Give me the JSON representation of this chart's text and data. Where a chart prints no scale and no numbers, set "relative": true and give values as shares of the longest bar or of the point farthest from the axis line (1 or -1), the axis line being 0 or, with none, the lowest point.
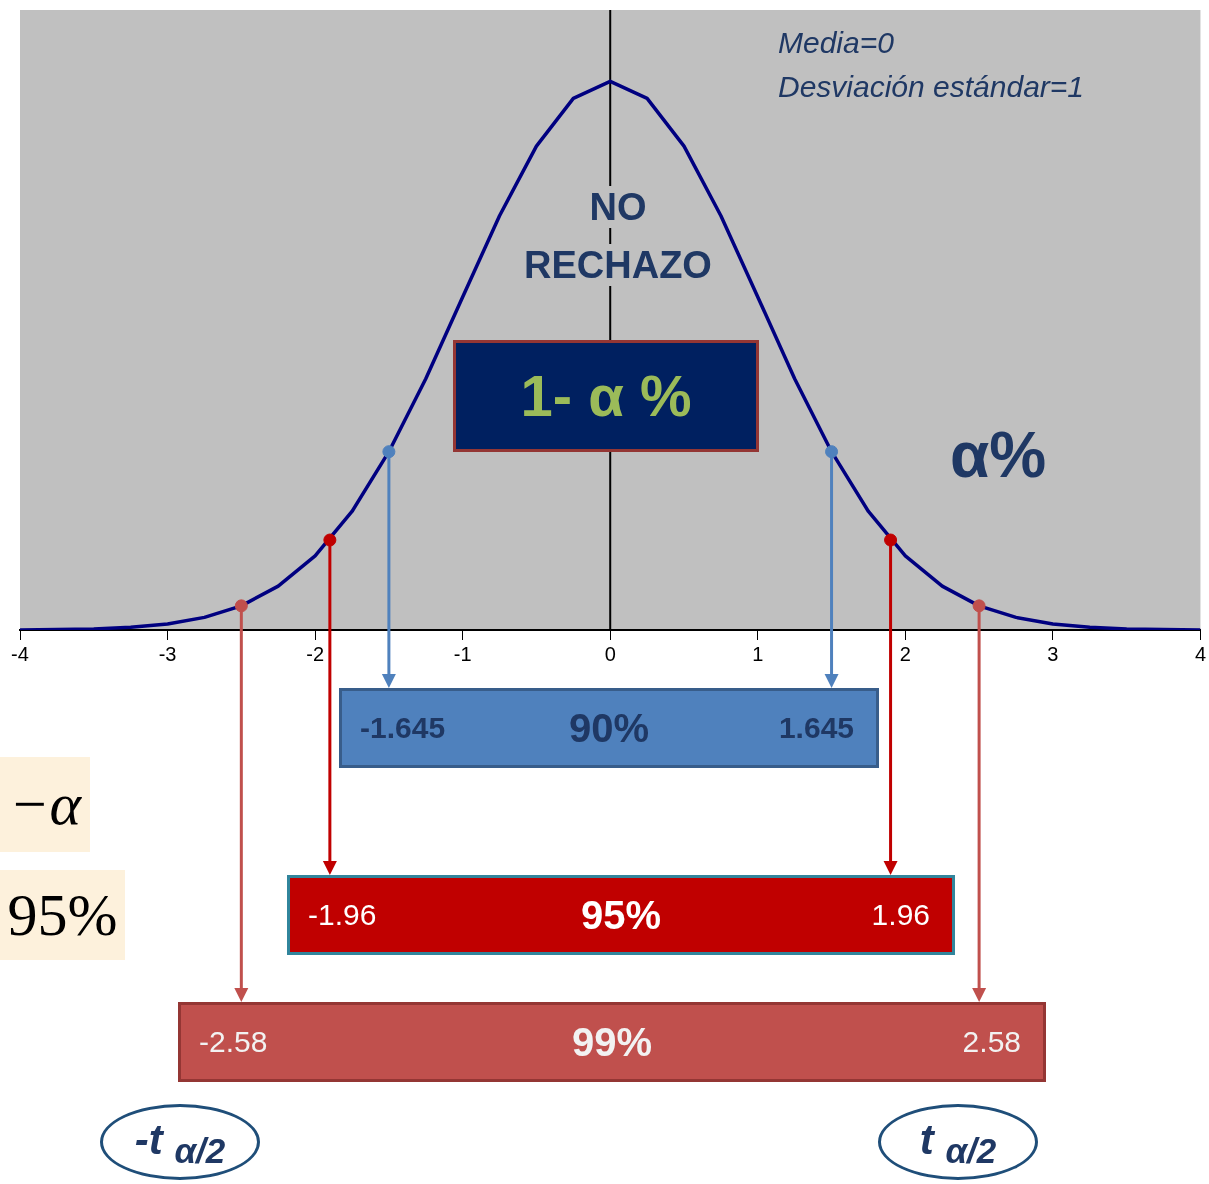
{
  "chart_data": {
    "type": "line",
    "relative": true,
    "xlim": [
      -4,
      4
    ],
    "xticks": [
      -4,
      -3,
      -2,
      -1,
      0,
      1,
      2,
      3,
      4
    ],
    "grid": false,
    "legend": false,
    "series": [
      {
        "color": "#000080",
        "marker": "none",
        "x": [
          -4,
          -3.75,
          -3.5,
          -3.25,
          -3,
          -2.75,
          -2.5,
          -2.25,
          -2,
          -1.75,
          -1.5,
          -1.25,
          -1,
          -0.75,
          -0.5,
          -0.25,
          0,
          0.25,
          0.5,
          0.75,
          1,
          1.25,
          1.5,
          1.75,
          2,
          2.25,
          2.5,
          2.75,
          3,
          3.25,
          3.5,
          3.75,
          4
        ],
        "values": [
          0.0,
          0.001,
          0.002,
          0.005,
          0.011,
          0.023,
          0.044,
          0.08,
          0.135,
          0.216,
          0.325,
          0.458,
          0.607,
          0.755,
          0.882,
          0.969,
          1,
          0.969,
          0.882,
          0.755,
          0.607,
          0.458,
          0.325,
          0.216,
          0.135,
          0.08,
          0.044,
          0.023,
          0.011,
          0.005,
          0.002,
          0.001,
          0.0
        ]
      },
      {
        "type": "scatter",
        "marker": "circle",
        "x": [
          -2.5,
          -1.9,
          -1.5,
          1.5,
          1.9,
          2.5
        ],
        "values": [
          0.044,
          0.164,
          0.325,
          0.325,
          0.164,
          0.044
        ],
        "colors": [
          "#c0504d",
          "#c00000",
          "#4f81bd",
          "#4f81bd",
          "#c00000",
          "#c0504d"
        ]
      }
    ],
    "ref_lines": [
      {
        "axis": "x",
        "value": 0,
        "color": "#000000"
      }
    ],
    "annotations": [
      "Media=0",
      "Desviación estándar=1",
      "NO RECHAZO",
      "1- α %",
      "α%",
      "-1.645",
      "90%",
      "1.645",
      "-1.96",
      "95%",
      "1.96",
      "-2.58",
      "99%",
      "2.58",
      "−α",
      "95%",
      "-t $_{α/2}$",
      "t $_{α/2}$"
    ]
  }
}
